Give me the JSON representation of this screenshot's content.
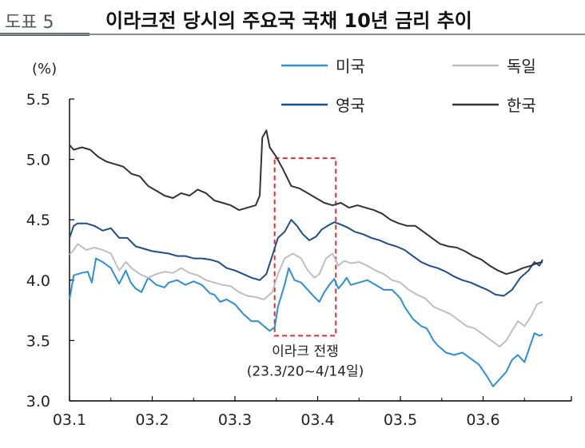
{
  "header": {
    "fig_label": "도표 5",
    "title": "이라크전 당시의 주요국 국채 10년 금리 추이"
  },
  "chart_data": {
    "type": "line",
    "ylabel": "(%)",
    "ylim": [
      3.0,
      5.5
    ],
    "yticks": [
      "3.0",
      "3.5",
      "4.0",
      "4.5",
      "5.0",
      "5.5"
    ],
    "xticks": [
      "03.1",
      "03.2",
      "03.3",
      "03.4",
      "03.5",
      "03.6"
    ],
    "xlim": [
      0,
      5.72
    ],
    "legend_position": "top-right",
    "grid": false,
    "annotation": {
      "line1": "이라크 전쟁",
      "line2": "(23.3/20~4/14일)",
      "x_start": 2.48,
      "x_end": 3.22,
      "y_low": 3.54,
      "y_high": 5.01
    },
    "series": [
      {
        "name": "미국",
        "color": "#2e8fd8",
        "points": [
          [
            0,
            3.84
          ],
          [
            0.05,
            4.04
          ],
          [
            0.15,
            4.06
          ],
          [
            0.22,
            4.07
          ],
          [
            0.27,
            3.98
          ],
          [
            0.32,
            4.18
          ],
          [
            0.4,
            4.15
          ],
          [
            0.5,
            4.1
          ],
          [
            0.6,
            3.97
          ],
          [
            0.68,
            4.08
          ],
          [
            0.74,
            3.98
          ],
          [
            0.8,
            3.93
          ],
          [
            0.87,
            3.9
          ],
          [
            0.95,
            4.02
          ],
          [
            1.05,
            3.96
          ],
          [
            1.15,
            3.94
          ],
          [
            1.2,
            3.98
          ],
          [
            1.3,
            4.0
          ],
          [
            1.4,
            3.96
          ],
          [
            1.5,
            3.99
          ],
          [
            1.6,
            3.96
          ],
          [
            1.7,
            3.89
          ],
          [
            1.75,
            3.88
          ],
          [
            1.82,
            3.82
          ],
          [
            1.9,
            3.84
          ],
          [
            2.0,
            3.8
          ],
          [
            2.1,
            3.72
          ],
          [
            2.2,
            3.66
          ],
          [
            2.28,
            3.66
          ],
          [
            2.35,
            3.62
          ],
          [
            2.42,
            3.58
          ],
          [
            2.48,
            3.61
          ],
          [
            2.52,
            3.78
          ],
          [
            2.6,
            3.96
          ],
          [
            2.65,
            4.1
          ],
          [
            2.72,
            4.0
          ],
          [
            2.8,
            3.98
          ],
          [
            2.88,
            3.92
          ],
          [
            2.96,
            3.86
          ],
          [
            3.02,
            3.82
          ],
          [
            3.08,
            3.9
          ],
          [
            3.14,
            3.96
          ],
          [
            3.2,
            4.01
          ],
          [
            3.25,
            3.93
          ],
          [
            3.3,
            3.97
          ],
          [
            3.35,
            4.02
          ],
          [
            3.4,
            3.96
          ],
          [
            3.5,
            3.98
          ],
          [
            3.6,
            4.0
          ],
          [
            3.7,
            3.96
          ],
          [
            3.8,
            3.92
          ],
          [
            3.9,
            3.92
          ],
          [
            4.0,
            3.85
          ],
          [
            4.05,
            3.78
          ],
          [
            4.15,
            3.68
          ],
          [
            4.25,
            3.62
          ],
          [
            4.32,
            3.6
          ],
          [
            4.4,
            3.5
          ],
          [
            4.45,
            3.46
          ],
          [
            4.55,
            3.4
          ],
          [
            4.65,
            3.38
          ],
          [
            4.75,
            3.4
          ],
          [
            4.85,
            3.35
          ],
          [
            4.95,
            3.3
          ],
          [
            5.05,
            3.2
          ],
          [
            5.12,
            3.12
          ],
          [
            5.2,
            3.18
          ],
          [
            5.28,
            3.24
          ],
          [
            5.35,
            3.34
          ],
          [
            5.42,
            3.38
          ],
          [
            5.5,
            3.32
          ],
          [
            5.56,
            3.44
          ],
          [
            5.62,
            3.56
          ],
          [
            5.68,
            3.54
          ],
          [
            5.72,
            3.55
          ]
        ]
      },
      {
        "name": "독일",
        "color": "#bfbfbf",
        "points": [
          [
            0,
            4.21
          ],
          [
            0.05,
            4.25
          ],
          [
            0.1,
            4.3
          ],
          [
            0.2,
            4.25
          ],
          [
            0.3,
            4.27
          ],
          [
            0.4,
            4.25
          ],
          [
            0.5,
            4.22
          ],
          [
            0.6,
            4.08
          ],
          [
            0.68,
            4.15
          ],
          [
            0.75,
            4.1
          ],
          [
            0.85,
            4.05
          ],
          [
            0.95,
            4.02
          ],
          [
            1.05,
            4.05
          ],
          [
            1.15,
            4.07
          ],
          [
            1.25,
            4.06
          ],
          [
            1.35,
            4.1
          ],
          [
            1.45,
            4.06
          ],
          [
            1.55,
            4.04
          ],
          [
            1.65,
            4.0
          ],
          [
            1.75,
            3.98
          ],
          [
            1.85,
            3.96
          ],
          [
            1.95,
            3.95
          ],
          [
            2.05,
            3.9
          ],
          [
            2.15,
            3.87
          ],
          [
            2.25,
            3.86
          ],
          [
            2.35,
            3.84
          ],
          [
            2.45,
            3.9
          ],
          [
            2.52,
            4.05
          ],
          [
            2.6,
            4.18
          ],
          [
            2.7,
            4.22
          ],
          [
            2.8,
            4.18
          ],
          [
            2.88,
            4.08
          ],
          [
            2.96,
            4.02
          ],
          [
            3.02,
            4.05
          ],
          [
            3.1,
            4.18
          ],
          [
            3.18,
            4.22
          ],
          [
            3.25,
            4.12
          ],
          [
            3.32,
            4.16
          ],
          [
            3.4,
            4.14
          ],
          [
            3.5,
            4.15
          ],
          [
            3.6,
            4.12
          ],
          [
            3.7,
            4.08
          ],
          [
            3.8,
            4.05
          ],
          [
            3.9,
            4.0
          ],
          [
            4.0,
            3.98
          ],
          [
            4.1,
            3.92
          ],
          [
            4.2,
            3.88
          ],
          [
            4.3,
            3.85
          ],
          [
            4.4,
            3.78
          ],
          [
            4.5,
            3.75
          ],
          [
            4.6,
            3.72
          ],
          [
            4.7,
            3.67
          ],
          [
            4.8,
            3.62
          ],
          [
            4.9,
            3.6
          ],
          [
            5.0,
            3.55
          ],
          [
            5.1,
            3.5
          ],
          [
            5.2,
            3.45
          ],
          [
            5.28,
            3.5
          ],
          [
            5.35,
            3.58
          ],
          [
            5.42,
            3.66
          ],
          [
            5.5,
            3.62
          ],
          [
            5.58,
            3.7
          ],
          [
            5.65,
            3.8
          ],
          [
            5.72,
            3.82
          ]
        ]
      },
      {
        "name": "영국",
        "color": "#1f4e8c",
        "points": [
          [
            0,
            4.35
          ],
          [
            0.05,
            4.45
          ],
          [
            0.1,
            4.47
          ],
          [
            0.2,
            4.47
          ],
          [
            0.3,
            4.45
          ],
          [
            0.4,
            4.41
          ],
          [
            0.5,
            4.43
          ],
          [
            0.6,
            4.35
          ],
          [
            0.7,
            4.35
          ],
          [
            0.8,
            4.28
          ],
          [
            0.9,
            4.26
          ],
          [
            1.0,
            4.24
          ],
          [
            1.1,
            4.23
          ],
          [
            1.2,
            4.22
          ],
          [
            1.3,
            4.2
          ],
          [
            1.4,
            4.2
          ],
          [
            1.5,
            4.18
          ],
          [
            1.6,
            4.18
          ],
          [
            1.7,
            4.17
          ],
          [
            1.8,
            4.15
          ],
          [
            1.9,
            4.1
          ],
          [
            2.0,
            4.08
          ],
          [
            2.1,
            4.05
          ],
          [
            2.2,
            4.02
          ],
          [
            2.3,
            4.0
          ],
          [
            2.38,
            4.05
          ],
          [
            2.45,
            4.2
          ],
          [
            2.52,
            4.35
          ],
          [
            2.6,
            4.4
          ],
          [
            2.68,
            4.5
          ],
          [
            2.75,
            4.45
          ],
          [
            2.82,
            4.38
          ],
          [
            2.9,
            4.33
          ],
          [
            2.98,
            4.36
          ],
          [
            3.05,
            4.42
          ],
          [
            3.12,
            4.45
          ],
          [
            3.2,
            4.48
          ],
          [
            3.28,
            4.46
          ],
          [
            3.35,
            4.44
          ],
          [
            3.45,
            4.4
          ],
          [
            3.55,
            4.38
          ],
          [
            3.65,
            4.35
          ],
          [
            3.75,
            4.33
          ],
          [
            3.85,
            4.3
          ],
          [
            3.95,
            4.28
          ],
          [
            4.05,
            4.25
          ],
          [
            4.15,
            4.2
          ],
          [
            4.25,
            4.15
          ],
          [
            4.35,
            4.12
          ],
          [
            4.45,
            4.1
          ],
          [
            4.55,
            4.07
          ],
          [
            4.65,
            4.03
          ],
          [
            4.75,
            4.0
          ],
          [
            4.85,
            3.98
          ],
          [
            4.95,
            3.95
          ],
          [
            5.05,
            3.92
          ],
          [
            5.15,
            3.88
          ],
          [
            5.25,
            3.87
          ],
          [
            5.35,
            3.92
          ],
          [
            5.45,
            4.02
          ],
          [
            5.55,
            4.08
          ],
          [
            5.62,
            4.15
          ],
          [
            5.68,
            4.12
          ],
          [
            5.72,
            4.17
          ]
        ]
      },
      {
        "name": "한국",
        "color": "#333333",
        "points": [
          [
            0,
            5.12
          ],
          [
            0.05,
            5.08
          ],
          [
            0.15,
            5.1
          ],
          [
            0.25,
            5.08
          ],
          [
            0.35,
            5.02
          ],
          [
            0.45,
            4.98
          ],
          [
            0.55,
            4.96
          ],
          [
            0.65,
            4.94
          ],
          [
            0.75,
            4.88
          ],
          [
            0.85,
            4.86
          ],
          [
            0.95,
            4.78
          ],
          [
            1.05,
            4.74
          ],
          [
            1.15,
            4.7
          ],
          [
            1.25,
            4.68
          ],
          [
            1.35,
            4.72
          ],
          [
            1.45,
            4.7
          ],
          [
            1.55,
            4.75
          ],
          [
            1.65,
            4.72
          ],
          [
            1.75,
            4.66
          ],
          [
            1.85,
            4.64
          ],
          [
            1.95,
            4.62
          ],
          [
            2.05,
            4.58
          ],
          [
            2.15,
            4.6
          ],
          [
            2.25,
            4.62
          ],
          [
            2.3,
            4.7
          ],
          [
            2.33,
            5.18
          ],
          [
            2.38,
            5.24
          ],
          [
            2.42,
            5.1
          ],
          [
            2.5,
            5.02
          ],
          [
            2.58,
            4.92
          ],
          [
            2.68,
            4.78
          ],
          [
            2.78,
            4.76
          ],
          [
            2.88,
            4.72
          ],
          [
            2.98,
            4.68
          ],
          [
            3.08,
            4.64
          ],
          [
            3.18,
            4.62
          ],
          [
            3.28,
            4.64
          ],
          [
            3.38,
            4.6
          ],
          [
            3.48,
            4.62
          ],
          [
            3.58,
            4.6
          ],
          [
            3.68,
            4.58
          ],
          [
            3.78,
            4.55
          ],
          [
            3.88,
            4.5
          ],
          [
            3.98,
            4.47
          ],
          [
            4.08,
            4.45
          ],
          [
            4.18,
            4.45
          ],
          [
            4.28,
            4.4
          ],
          [
            4.38,
            4.35
          ],
          [
            4.48,
            4.3
          ],
          [
            4.58,
            4.28
          ],
          [
            4.68,
            4.27
          ],
          [
            4.78,
            4.24
          ],
          [
            4.88,
            4.2
          ],
          [
            4.98,
            4.17
          ],
          [
            5.08,
            4.12
          ],
          [
            5.18,
            4.08
          ],
          [
            5.28,
            4.05
          ],
          [
            5.38,
            4.07
          ],
          [
            5.48,
            4.1
          ],
          [
            5.58,
            4.12
          ],
          [
            5.65,
            4.14
          ],
          [
            5.72,
            4.15
          ]
        ]
      }
    ]
  }
}
